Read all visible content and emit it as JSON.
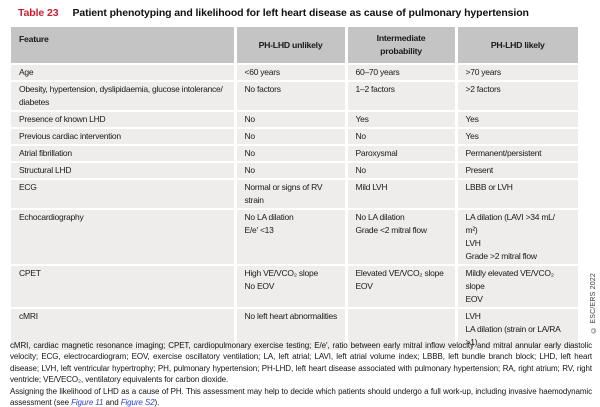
{
  "title": {
    "label": "Table 23",
    "text": "Patient phenotyping and likelihood for left heart disease as cause of pulmonary hypertension"
  },
  "colors": {
    "title_red": "#c8202f",
    "header_bg": "#c5c4c4",
    "row_bg": "#eeedec",
    "link_blue": "#3142c4"
  },
  "table": {
    "headers": {
      "feature": "Feature",
      "unlikely": "PH-LHD unlikely",
      "intermediate": "Intermediate\nprobability",
      "likely": "PH-LHD likely"
    },
    "rows": [
      {
        "feature": "Age",
        "unlikely": "<60 years",
        "intermediate": "60–70 years",
        "likely": ">70 years"
      },
      {
        "feature": "Obesity, hypertension, dyslipidaemia, glucose intolerance/\ndiabetes",
        "unlikely": "No factors",
        "intermediate": "1–2 factors",
        "likely": ">2 factors"
      },
      {
        "feature": "Presence of known LHD",
        "unlikely": "No",
        "intermediate": "Yes",
        "likely": "Yes"
      },
      {
        "feature": "Previous cardiac intervention",
        "unlikely": "No",
        "intermediate": "No",
        "likely": "Yes"
      },
      {
        "feature": "Atrial fibrillation",
        "unlikely": "No",
        "intermediate": "Paroxysmal",
        "likely": "Permanent/persistent"
      },
      {
        "feature": "Structural LHD",
        "unlikely": "No",
        "intermediate": "No",
        "likely": "Present"
      },
      {
        "feature": "ECG",
        "unlikely": "Normal or signs of RV\nstrain",
        "intermediate": "Mild LVH",
        "likely": "LBBB or LVH"
      },
      {
        "feature": "Echocardiography",
        "unlikely": "No LA dilation\nE/e′ <13",
        "intermediate": "No LA dilation\nGrade <2 mitral flow",
        "likely": "LA dilation (LAVI >34 mL/\nm²)\nLVH\nGrade >2 mitral flow"
      },
      {
        "feature": "CPET",
        "unlikely": "High VE/VCO₂ slope\nNo EOV",
        "intermediate": "Elevated VE/VCO₂ slope\nEOV",
        "likely": "Mildly elevated VE/VCO₂\nslope\nEOV"
      },
      {
        "feature": "cMRI",
        "unlikely": "No left heart abnormalities",
        "intermediate": "",
        "likely": "LVH\nLA dilation (strain or LA/RA\n>1)"
      }
    ]
  },
  "copyright": "© ESC/ERS 2022",
  "footnotes": {
    "abbreviations": "cMRI, cardiac magnetic resonance imaging; CPET, cardiopulmonary exercise testing; E/e′, ratio between early mitral inflow velocity and mitral annular early diastolic velocity; ECG, electrocardiogram; EOV, exercise oscillatory ventilation; LA, left atrial; LAVI, left atrial volume index; LBBB, left bundle branch block; LHD, left heart disease; LVH, left ventricular hypertrophy; PH, pulmonary hypertension; PH-LHD, left heart disease associated with pulmonary hypertension; RA, right atrium; RV, right ventricle; VE/VECO₂, ventilatory equivalents for carbon dioxide.",
    "assessment_text": "Assigning the likelihood of LHD as a cause of PH. This assessment may help to decide which patients should undergo a full work-up, including invasive haemodynamic assessment (see ",
    "figure_link_1": "Figure 11",
    "and_text": " and ",
    "figure_link_2": "Figure S2",
    "closing_text": ")."
  }
}
